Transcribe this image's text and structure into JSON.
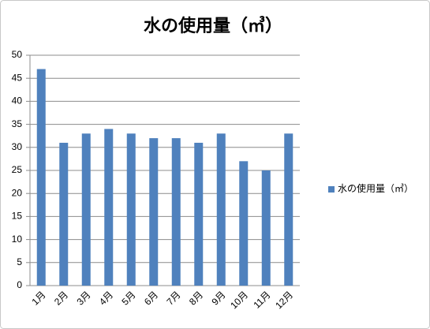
{
  "chart_data": {
    "type": "bar",
    "title": "水の使用量（㎥）",
    "categories": [
      "1月",
      "2月",
      "3月",
      "4月",
      "5月",
      "6月",
      "7月",
      "8月",
      "9月",
      "10月",
      "11月",
      "12月"
    ],
    "series": [
      {
        "name": "水の使用量（㎥）",
        "color": "#4f81bd",
        "values": [
          47,
          31,
          33,
          34,
          33,
          32,
          32,
          31,
          33,
          27,
          25,
          33
        ]
      }
    ],
    "ylim": [
      0,
      50
    ],
    "yticks": [
      0,
      5,
      10,
      15,
      20,
      25,
      30,
      35,
      40,
      45,
      50
    ],
    "grid": true,
    "legend": "right"
  }
}
